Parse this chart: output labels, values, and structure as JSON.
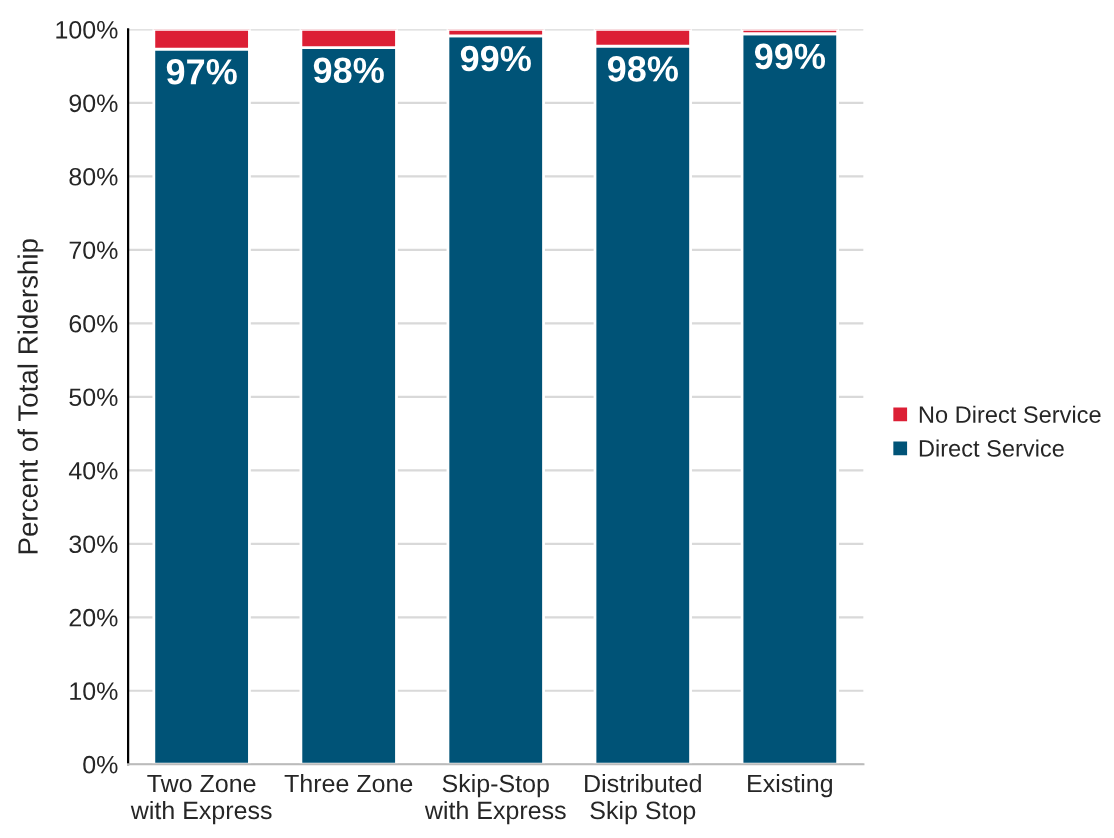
{
  "chart_data": {
    "type": "bar",
    "stacked": true,
    "ylabel": "Percent of Total Ridership",
    "categories": [
      "Two Zone\nwith Express",
      "Three Zone",
      "Skip-Stop\nwith Express",
      "Distributed\nSkip Stop",
      "Existing"
    ],
    "series": [
      {
        "name": "Direct Service",
        "color": "#005377",
        "values": [
          97.3,
          97.5,
          99.1,
          97.7,
          99.4
        ],
        "value_labels": [
          "97%",
          "98%",
          "99%",
          "98%",
          "99%"
        ]
      },
      {
        "name": "No Direct Service",
        "color": "#dc1f35",
        "values": [
          2.7,
          2.5,
          0.9,
          2.3,
          0.6
        ]
      }
    ],
    "ylim": [
      0,
      100
    ],
    "yticks": [
      {
        "value": 0,
        "label": "0%"
      },
      {
        "value": 10,
        "label": "10%"
      },
      {
        "value": 20,
        "label": "20%"
      },
      {
        "value": 30,
        "label": "30%"
      },
      {
        "value": 40,
        "label": "40%"
      },
      {
        "value": 50,
        "label": "50%"
      },
      {
        "value": 60,
        "label": "60%"
      },
      {
        "value": 70,
        "label": "70%"
      },
      {
        "value": 80,
        "label": "80%"
      },
      {
        "value": 90,
        "label": "90%"
      },
      {
        "value": 100,
        "label": "100%"
      }
    ],
    "grid": "y",
    "legend": "right"
  }
}
